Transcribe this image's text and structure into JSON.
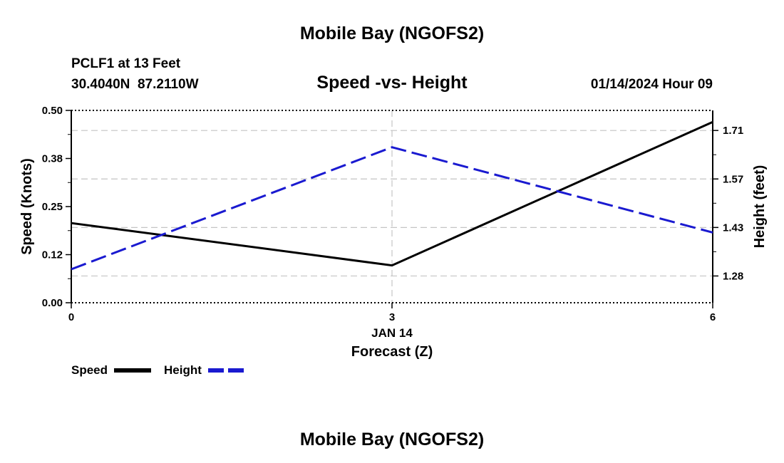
{
  "page": {
    "title": "Mobile Bay (NGOFS2)",
    "footer_title": "Mobile Bay (NGOFS2)"
  },
  "station": {
    "name": "PCLF1 at 13 Feet",
    "coords": "30.4040N  87.2110W"
  },
  "chart_data": {
    "type": "line",
    "title": "Speed -vs- Height",
    "date_label": "01/14/2024 Hour 09",
    "x": [
      0,
      3,
      6
    ],
    "x_ticks": [
      "0",
      "3",
      "6"
    ],
    "x_date_label": "JAN 14",
    "xlabel": "Forecast (Z)",
    "xlim": [
      0,
      6
    ],
    "y_left": {
      "label": "Speed (Knots)",
      "ticks": [
        "0.50",
        "0.38",
        "0.25",
        "0.12",
        "0.00"
      ],
      "tick_values": [
        0.5,
        0.375,
        0.25,
        0.125,
        0.0
      ],
      "lim": [
        0.0,
        0.5
      ]
    },
    "y_right": {
      "label": "Height (feet)",
      "ticks": [
        "1.71",
        "1.57",
        "1.43",
        "1.28"
      ],
      "tick_values": [
        1.715,
        1.57,
        1.425,
        1.28
      ],
      "lim": [
        1.2,
        1.775
      ]
    },
    "grid": true,
    "series": [
      {
        "name": "Speed",
        "axis": "left",
        "color": "#000000",
        "style": "solid",
        "values": [
          0.207,
          0.097,
          0.47
        ]
      },
      {
        "name": "Height",
        "axis": "right",
        "color": "#1a1ad0",
        "style": "dashed",
        "values": [
          1.3,
          1.665,
          1.41
        ]
      }
    ],
    "legend_placement": "bottom-left"
  }
}
